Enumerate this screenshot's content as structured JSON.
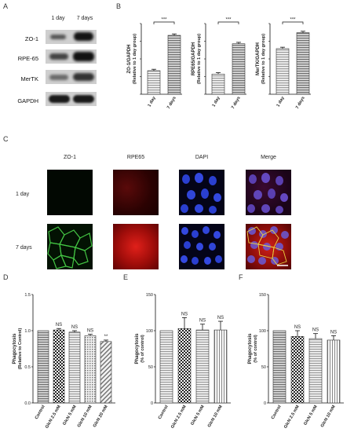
{
  "panels": {
    "A": {
      "label": "A",
      "columns": [
        "1 day",
        "7 days"
      ],
      "rows": [
        "ZO-1",
        "RPE-65",
        "MerTK",
        "GAPDH"
      ]
    },
    "B": {
      "label": "B"
    },
    "C": {
      "label": "C",
      "columns": [
        "ZO-1",
        "RPE65",
        "DAPI",
        "Merge"
      ],
      "rows": [
        "1 day",
        "7 days"
      ]
    },
    "D": {
      "label": "D"
    },
    "E": {
      "label": "E"
    },
    "F": {
      "label": "F"
    }
  },
  "chart_data": [
    {
      "id": "B1",
      "type": "bar",
      "ylabel_line1": "ZO-1/GAPDH",
      "ylabel_line2": "(Relative to 1 day group)",
      "categories": [
        "1 day",
        "7 days"
      ],
      "values": [
        1.0,
        2.5
      ],
      "ylim": [
        0,
        3.0
      ],
      "annotations": [
        {
          "text": "***",
          "between": [
            0,
            1
          ]
        }
      ]
    },
    {
      "id": "B2",
      "type": "bar",
      "ylabel_line1": "RPE65/GAPDH",
      "ylabel_line2": "(Relative to 1 day group)",
      "categories": [
        "1 day",
        "7 days"
      ],
      "values": [
        1.0,
        2.5
      ],
      "ylim": [
        0,
        3.5
      ],
      "annotations": [
        {
          "text": "***",
          "between": [
            0,
            1
          ]
        }
      ]
    },
    {
      "id": "B3",
      "type": "bar",
      "ylabel_line1": "MerTK/GAPDH",
      "ylabel_line2": "(Relative to 1 day group)",
      "categories": [
        "1 day",
        "7 days"
      ],
      "values": [
        1.0,
        1.35
      ],
      "ylim": [
        0,
        1.55
      ],
      "annotations": [
        {
          "text": "***",
          "between": [
            0,
            1
          ]
        }
      ]
    },
    {
      "id": "D",
      "type": "bar",
      "ylabel_line1": "Phagocytosis",
      "ylabel_line2": "(Relative to Control)",
      "categories": [
        "Control",
        "GlcN 2.5 mM",
        "GlcN 5 mM",
        "GlcN 10 mM",
        "GlcN 20 mM"
      ],
      "values": [
        1.0,
        1.01,
        0.98,
        0.93,
        0.85
      ],
      "errors": [
        0,
        0.02,
        0.02,
        0.02,
        0.02
      ],
      "ylim": [
        0,
        1.5
      ],
      "yticks": [
        "0.0",
        "0.5",
        "1.0",
        "1.5"
      ],
      "annotations": [
        "",
        "NS",
        "NS",
        "NS",
        "**"
      ]
    },
    {
      "id": "E",
      "type": "bar",
      "ylabel_line1": "Phagocytosis",
      "ylabel_line2": "(% of control)",
      "categories": [
        "Control",
        "GlcN 2.5 mM",
        "GlcN 5 mM",
        "GlcN 10 mM"
      ],
      "values": [
        100,
        103,
        101,
        101
      ],
      "errors": [
        0,
        15,
        8,
        12
      ],
      "ylim": [
        0,
        150
      ],
      "yticks": [
        "0",
        "50",
        "100",
        "150"
      ],
      "annotations": [
        "",
        "NS",
        "NS",
        "NS"
      ]
    },
    {
      "id": "F",
      "type": "bar",
      "ylabel_line1": "Phagocytosis",
      "ylabel_line2": "(% of control)",
      "categories": [
        "Control",
        "GlcN 2.5 mM",
        "GlcN 5 mM",
        "GlcN 10 mM"
      ],
      "values": [
        100,
        92,
        89,
        87
      ],
      "errors": [
        0,
        8,
        7,
        6
      ],
      "ylim": [
        0,
        150
      ],
      "yticks": [
        "0",
        "50",
        "100",
        "150"
      ],
      "annotations": [
        "",
        "NS",
        "NS",
        "NS"
      ]
    }
  ]
}
